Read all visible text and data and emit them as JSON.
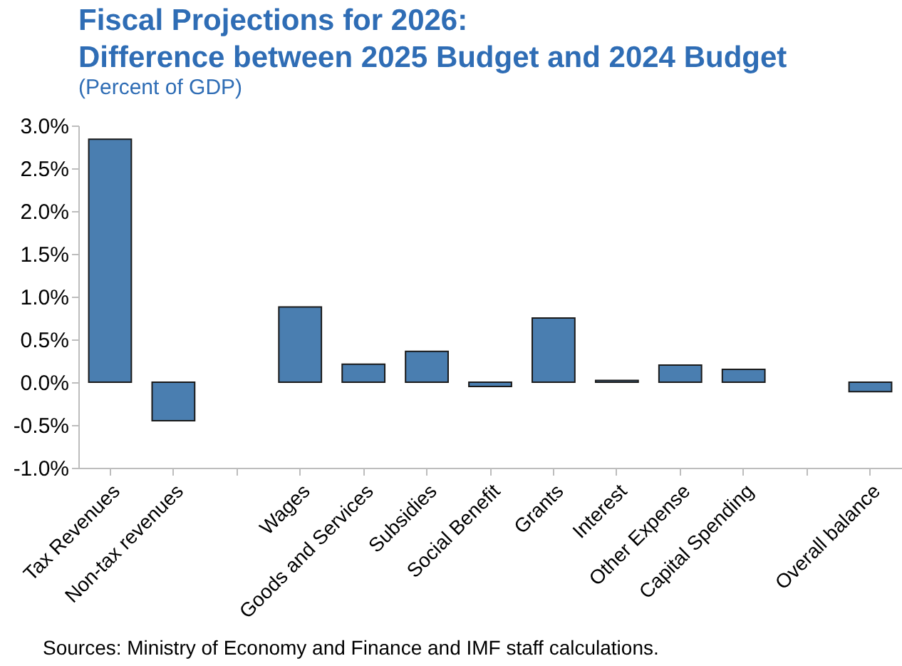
{
  "chart_data": {
    "type": "bar",
    "title": "Fiscal Projections for 2026:\nDifference between 2025 Budget and 2024 Budget",
    "subtitle": "(Percent of GDP)",
    "categories": [
      "Tax Revenues",
      "Non-tax revenues",
      null,
      "Wages",
      "Goods and Services",
      "Subsidies",
      "Social Benefit",
      "Grants",
      "Interest",
      "Other Expense",
      "Capital Spending",
      null,
      "Overall balance"
    ],
    "values": [
      2.84,
      -0.45,
      null,
      0.88,
      0.21,
      0.36,
      -0.05,
      0.75,
      0.02,
      0.2,
      0.15,
      null,
      -0.11
    ],
    "color": "#4a7eb0",
    "ylim": [
      -1.0,
      3.0
    ],
    "yticks": [
      {
        "value": -1.0,
        "label": "-1.0%"
      },
      {
        "value": -0.5,
        "label": "-0.5%"
      },
      {
        "value": 0,
        "label": "0.0%"
      },
      {
        "value": 0.5,
        "label": "0.5%"
      },
      {
        "value": 1.0,
        "label": "1.0%"
      },
      {
        "value": 1.5,
        "label": "1.5%"
      },
      {
        "value": 2.0,
        "label": "2.0%"
      },
      {
        "value": 2.5,
        "label": "2.5%"
      },
      {
        "value": 3.0,
        "label": "3.0%"
      }
    ],
    "annotations": [
      "Sources: Ministry of Economy and Finance and IMF staff calculations."
    ]
  }
}
